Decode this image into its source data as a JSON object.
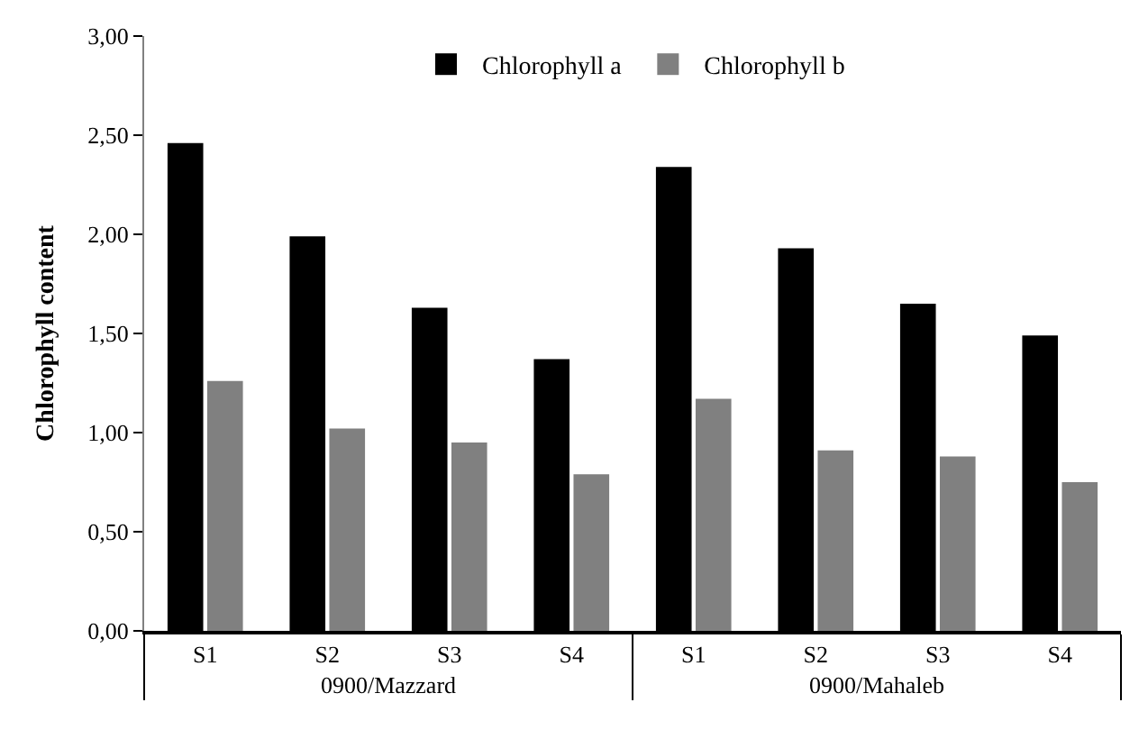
{
  "chart_data": {
    "type": "bar",
    "ylabel": "Chlorophyll content",
    "categories": [
      "S1",
      "S2",
      "S3",
      "S4",
      "S1",
      "S2",
      "S3",
      "S4"
    ],
    "series": [
      {
        "name": "Chlorophyll a",
        "color": "#000000",
        "values": [
          2.46,
          1.99,
          1.63,
          1.37,
          2.34,
          1.93,
          1.65,
          1.49
        ]
      },
      {
        "name": "Chlorophyll b",
        "color": "#808080",
        "values": [
          1.26,
          1.02,
          0.95,
          0.79,
          1.17,
          0.91,
          0.88,
          0.75
        ]
      }
    ],
    "ylim": [
      0,
      3
    ],
    "yticks": [
      {
        "value": 0,
        "label": "0,00"
      },
      {
        "value": 0.5,
        "label": "0,50"
      },
      {
        "value": 1,
        "label": "1,00"
      },
      {
        "value": 1.5,
        "label": "1,50"
      },
      {
        "value": 2,
        "label": "2,00"
      },
      {
        "value": 2.5,
        "label": "2,50"
      },
      {
        "value": 3,
        "label": "3,00"
      }
    ],
    "annotations": [
      "0900/Mazzard",
      "0900/Mahaleb"
    ],
    "legend": "top"
  }
}
